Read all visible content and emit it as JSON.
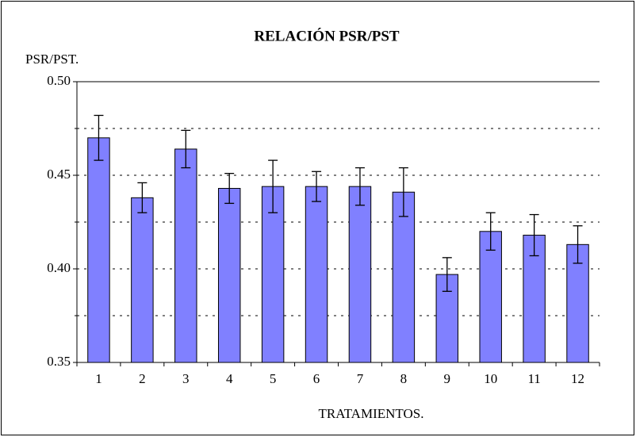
{
  "chart_data": {
    "type": "bar",
    "title": "RELACIÓN PSR/PST",
    "y_label": "PSR/PST.",
    "x_label": "TRATAMIENTOS.",
    "categories": [
      "1",
      "2",
      "3",
      "4",
      "5",
      "6",
      "7",
      "8",
      "9",
      "10",
      "11",
      "12"
    ],
    "values": [
      0.47,
      0.438,
      0.464,
      0.443,
      0.444,
      0.444,
      0.444,
      0.441,
      0.397,
      0.42,
      0.418,
      0.413
    ],
    "errors": [
      0.012,
      0.008,
      0.01,
      0.008,
      0.014,
      0.008,
      0.01,
      0.013,
      0.009,
      0.01,
      0.011,
      0.01
    ],
    "color": "#8080ff",
    "ylim": [
      0.35,
      0.5
    ],
    "yticks": [
      {
        "value": 0.35,
        "label": "0.35"
      },
      {
        "value": 0.4,
        "label": "0.40"
      },
      {
        "value": 0.45,
        "label": "0.45"
      },
      {
        "value": 0.5,
        "label": "0.50"
      }
    ],
    "minor_yticks": [
      0.375,
      0.425,
      0.475
    ],
    "grid": true
  }
}
